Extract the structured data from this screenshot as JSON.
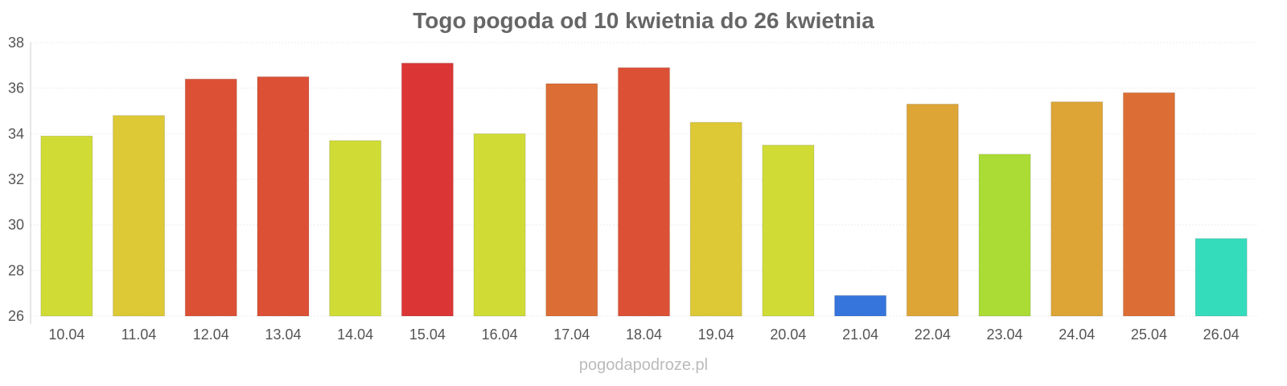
{
  "chart_data": {
    "type": "bar",
    "title": "Togo pogoda od 10 kwietnia do 26 kwietnia",
    "xlabel": "",
    "ylabel": "",
    "ylim": [
      26,
      38
    ],
    "yticks": [
      "26",
      "28",
      "30",
      "32",
      "34",
      "36",
      "38"
    ],
    "grid": true,
    "categories": [
      "10.04",
      "11.04",
      "12.04",
      "13.04",
      "14.04",
      "15.04",
      "16.04",
      "17.04",
      "18.04",
      "19.04",
      "20.04",
      "21.04",
      "22.04",
      "23.04",
      "24.04",
      "25.04",
      "26.04"
    ],
    "values": [
      33.9,
      34.8,
      36.4,
      36.5,
      33.7,
      37.1,
      34.0,
      36.2,
      36.9,
      34.5,
      33.5,
      26.9,
      35.3,
      33.1,
      35.4,
      35.8,
      29.4
    ],
    "colors": [
      "#d0dc35",
      "#dcc935",
      "#dc5035",
      "#dc5035",
      "#d0dc35",
      "#dc3535",
      "#d0dc35",
      "#dc6e35",
      "#dc5035",
      "#dcc935",
      "#d0dc35",
      "#3575dc",
      "#dca535",
      "#aadc35",
      "#dca535",
      "#dc6e35",
      "#35dcbb"
    ]
  },
  "credit": "pogodapodroze.pl"
}
